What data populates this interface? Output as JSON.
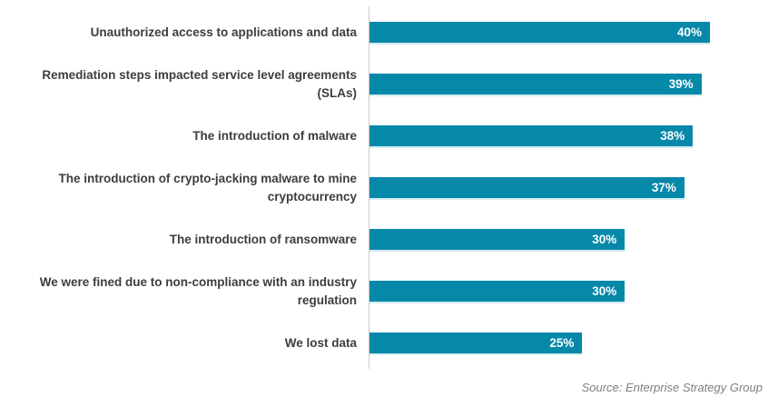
{
  "chart_data": {
    "type": "bar",
    "orientation": "horizontal",
    "title": "",
    "xlabel": "",
    "ylabel": "",
    "xlim": [
      0,
      48
    ],
    "grid": false,
    "legend": false,
    "bar_color": "#0688a9",
    "categories": [
      "Unauthorized access to applications and data",
      "Remediation steps impacted service level agreements (SLAs)",
      "The introduction of malware",
      "The introduction of crypto-jacking malware to mine cryptocurrency",
      "The introduction of ransomware",
      "We were fined due to non-compliance with an industry regulation",
      "We lost data"
    ],
    "values": [
      40,
      39,
      38,
      37,
      30,
      30,
      25
    ],
    "data_labels": [
      "40%",
      "39%",
      "38%",
      "37%",
      "30%",
      "30%",
      "25%"
    ]
  },
  "source": {
    "label": "Source: Enterprise Strategy Group"
  }
}
